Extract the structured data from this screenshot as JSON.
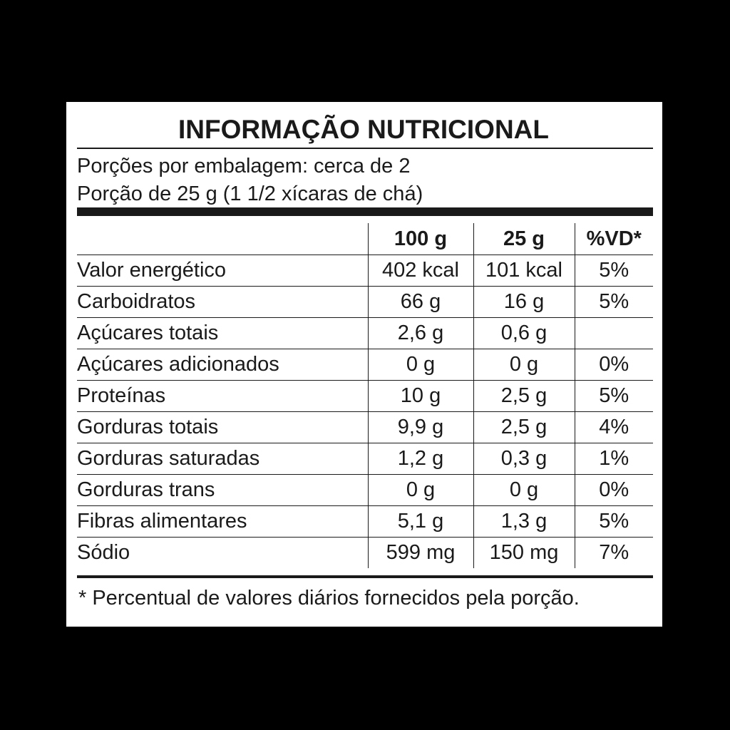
{
  "title": "INFORMAÇÃO NUTRICIONAL",
  "servings_per_package": "Porções por embalagem: cerca de 2",
  "serving_size": "Porção de 25 g (1 1/2 xícaras de chá)",
  "columns": [
    "",
    "100 g",
    "25 g",
    "%VD*"
  ],
  "rows": [
    {
      "name": "Valor energético",
      "per100": "402 kcal",
      "per_portion": "101 kcal",
      "vd": "5%"
    },
    {
      "name": "Carboidratos",
      "per100": "66 g",
      "per_portion": "16 g",
      "vd": "5%"
    },
    {
      "name": "Açúcares totais",
      "per100": "2,6 g",
      "per_portion": "0,6 g",
      "vd": ""
    },
    {
      "name": "Açúcares adicionados",
      "per100": "0 g",
      "per_portion": "0 g",
      "vd": "0%"
    },
    {
      "name": "Proteínas",
      "per100": "10 g",
      "per_portion": "2,5 g",
      "vd": "5%"
    },
    {
      "name": "Gorduras totais",
      "per100": "9,9 g",
      "per_portion": "2,5 g",
      "vd": "4%"
    },
    {
      "name": "Gorduras saturadas",
      "per100": "1,2 g",
      "per_portion": "0,3 g",
      "vd": "1%"
    },
    {
      "name": "Gorduras trans",
      "per100": "0 g",
      "per_portion": "0 g",
      "vd": "0%"
    },
    {
      "name": "Fibras alimentares",
      "per100": "5,1 g",
      "per_portion": "1,3 g",
      "vd": "5%"
    },
    {
      "name": "Sódio",
      "per100": "599 mg",
      "per_portion": "150 mg",
      "vd": "7%"
    }
  ],
  "footnote": "* Percentual de valores diários fornecidos pela porção.",
  "colors": {
    "background": "#000000",
    "panel": "#ffffff",
    "ink": "#1a1a1a"
  }
}
